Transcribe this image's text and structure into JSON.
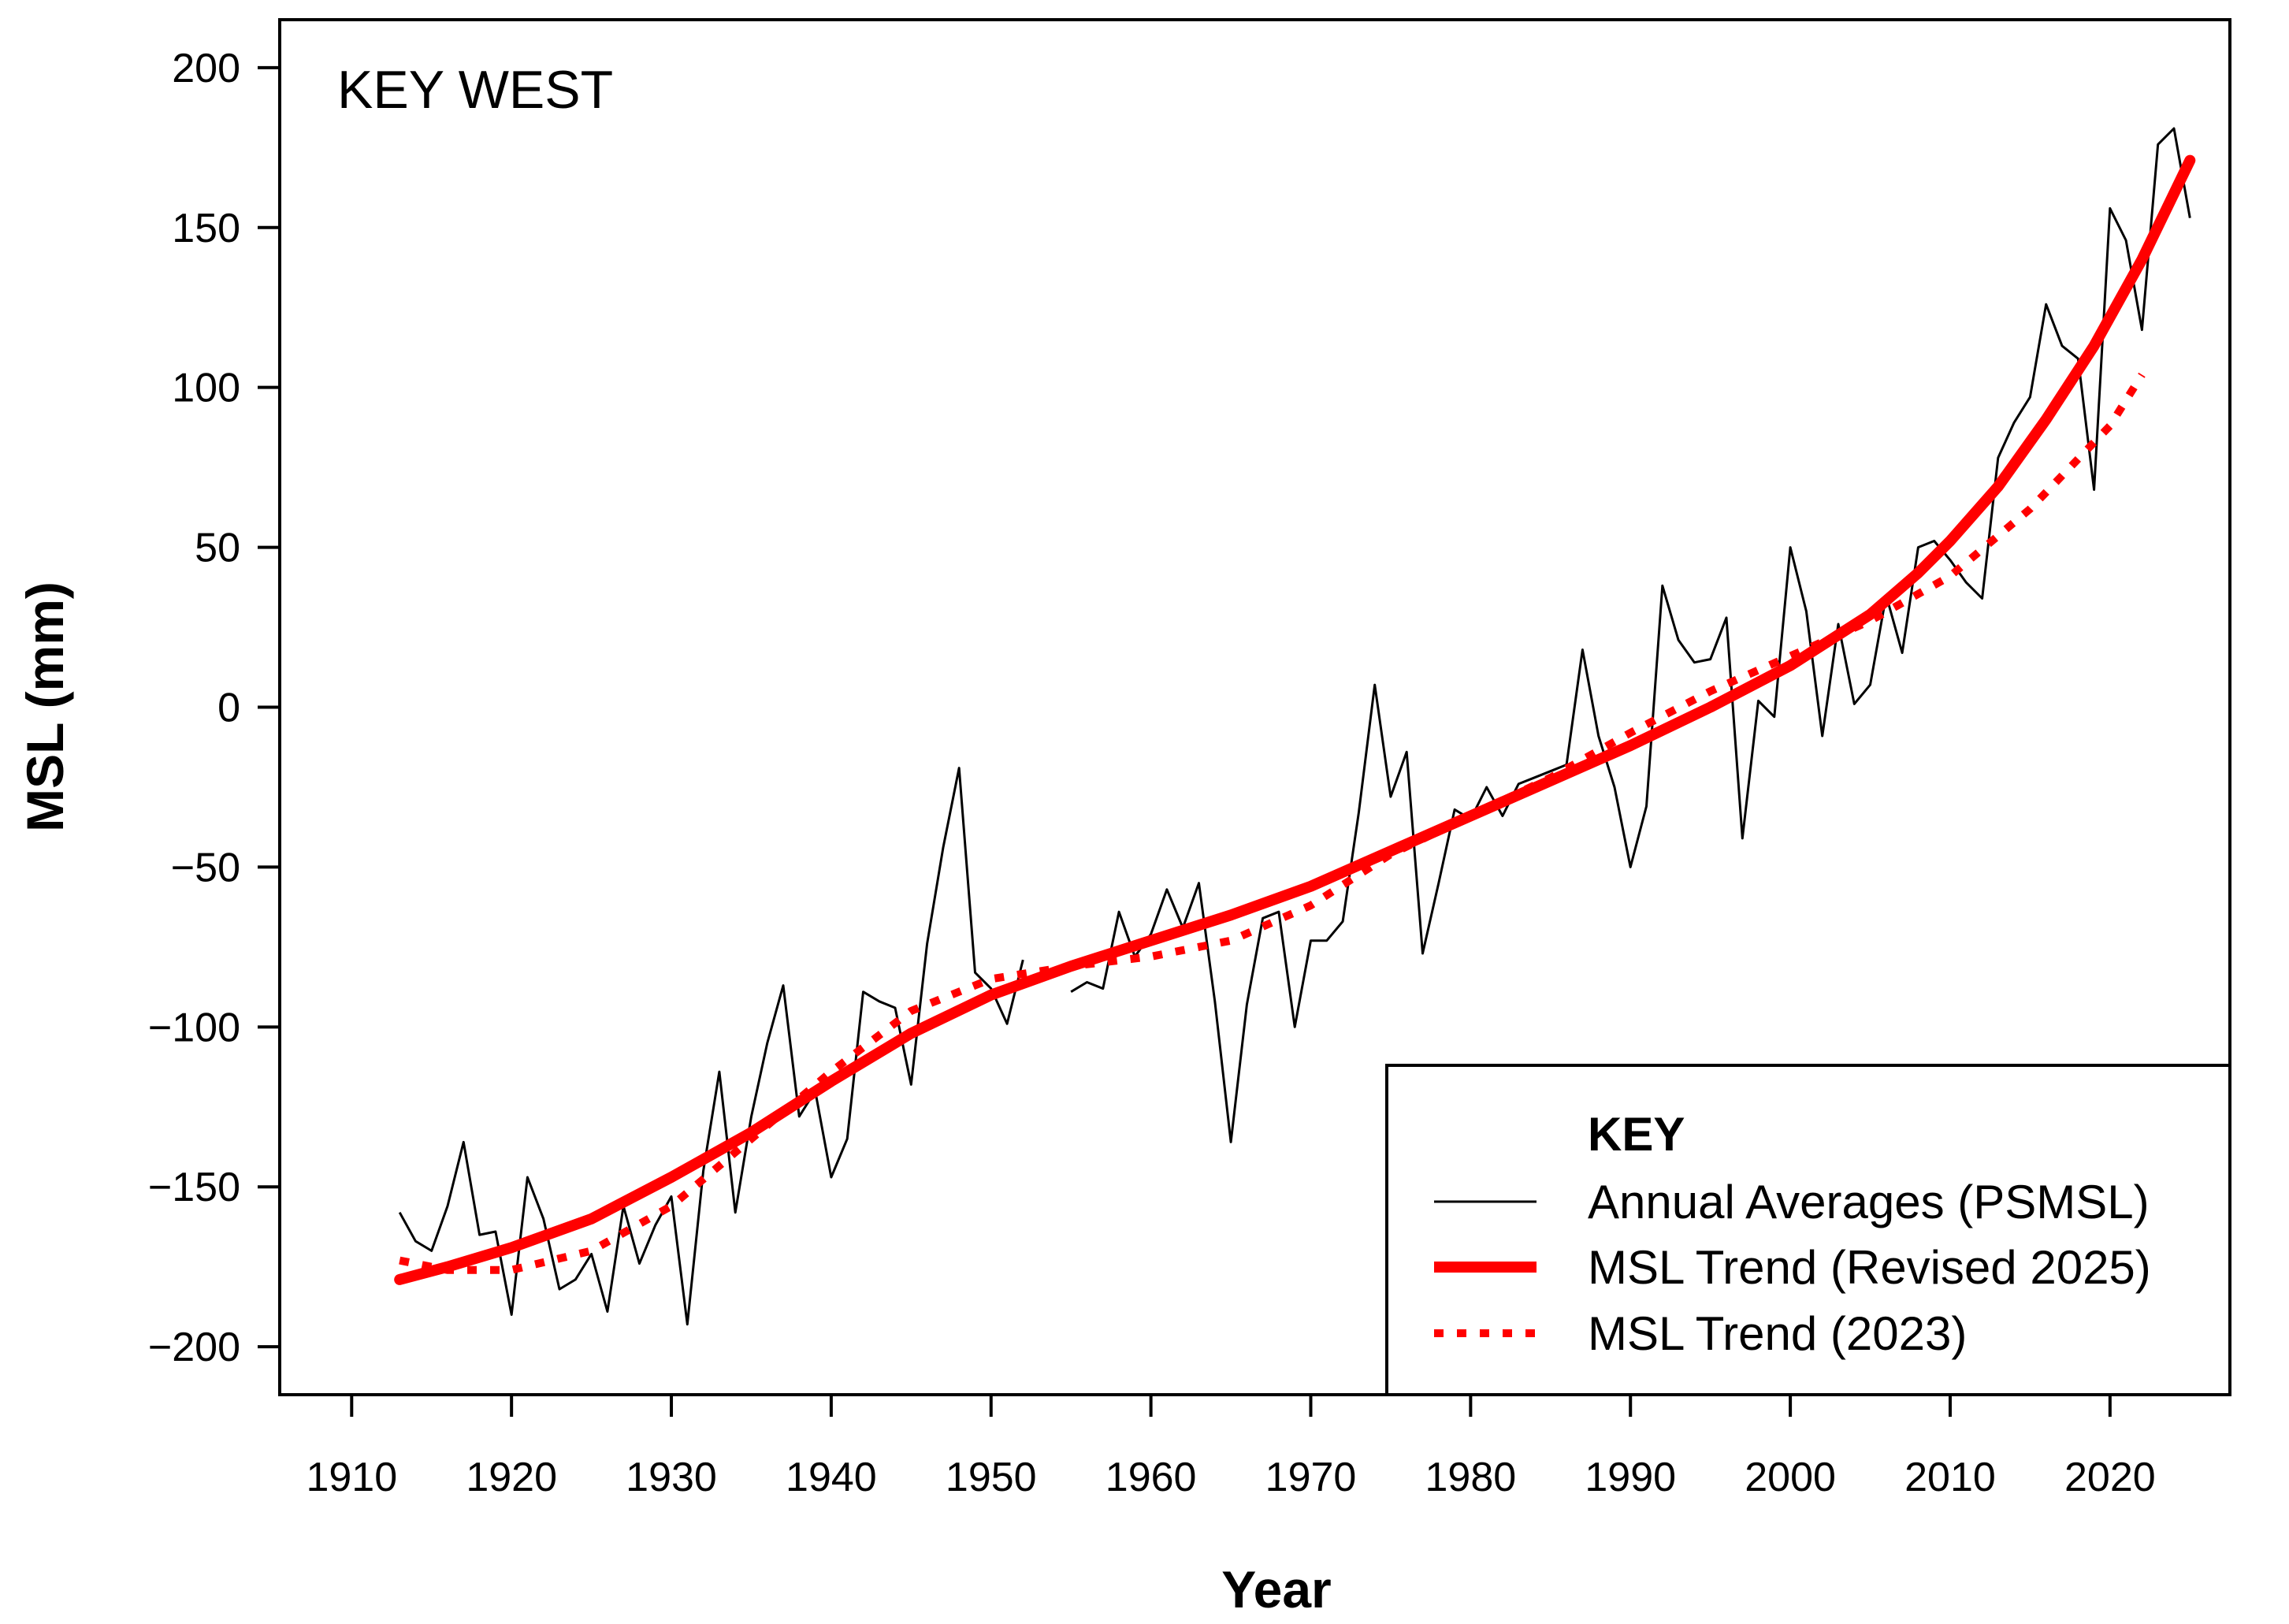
{
  "chart_data": {
    "type": "line",
    "title": "KEY WEST",
    "xlabel": "Year",
    "ylabel": "MSL (mm)",
    "xlim": [
      1905.5,
      2027.5
    ],
    "ylim": [
      -215,
      215
    ],
    "x_ticks": [
      "1910",
      "1920",
      "1930",
      "1940",
      "1950",
      "1960",
      "1970",
      "1980",
      "1990",
      "2000",
      "2010",
      "2020"
    ],
    "y_ticks": [
      "200",
      "150",
      "100",
      "50",
      "0",
      "−50",
      "−100",
      "−150",
      "−200"
    ],
    "colors": {
      "annual": "#000000",
      "trend": "#ff0000"
    },
    "legend": {
      "title": "KEY",
      "position": "bottom-right",
      "entries": [
        {
          "label": "Annual Averages (PSMSL)",
          "style": "thin-black"
        },
        {
          "label": "MSL Trend (Revised 2025)",
          "style": "thick-red"
        },
        {
          "label": "MSL Trend (2023)",
          "style": "dotted-red"
        }
      ]
    },
    "series": [
      {
        "name": "Annual Averages (PSMSL)",
        "segments": [
          {
            "x": [
              1913,
              1914,
              1915,
              1916,
              1917,
              1918,
              1919,
              1920,
              1921,
              1922,
              1923,
              1924,
              1925,
              1926,
              1927,
              1928,
              1929,
              1930,
              1931,
              1932,
              1933,
              1934,
              1935,
              1936,
              1937,
              1938,
              1939,
              1940,
              1941,
              1942,
              1943,
              1944,
              1945,
              1946,
              1947,
              1948,
              1949,
              1950,
              1951,
              1952
            ],
            "y": [
              -158,
              -167,
              -170,
              -156,
              -136,
              -165,
              -164,
              -190,
              -147,
              -160,
              -182,
              -179,
              -171,
              -189,
              -156,
              -174,
              -162,
              -153,
              -193,
              -145,
              -114,
              -158,
              -128,
              -105,
              -87,
              -128,
              -120,
              -147,
              -135,
              -89,
              -92,
              -94,
              -118,
              -74,
              -44,
              -19,
              -83,
              -88,
              -99,
              -79
            ]
          },
          {
            "x": [
              1955,
              1956,
              1957,
              1958,
              1959,
              1960,
              1961,
              1962,
              1963,
              1964,
              1965,
              1966,
              1967,
              1968,
              1969,
              1970,
              1971,
              1972,
              1973,
              1974,
              1975,
              1976,
              1977,
              1978,
              1979,
              1980,
              1981,
              1982,
              1983,
              1984,
              1985,
              1986,
              1987,
              1988,
              1989,
              1990,
              1991,
              1992,
              1993,
              1994,
              1995,
              1996,
              1997,
              1998,
              1999,
              2000,
              2001,
              2002,
              2003,
              2004,
              2005,
              2006,
              2007,
              2008,
              2009,
              2010,
              2011,
              2012,
              2013,
              2014,
              2015,
              2016,
              2017,
              2018,
              2019,
              2020,
              2021,
              2022,
              2023,
              2024,
              2025
            ],
            "y": [
              -89,
              -86,
              -88,
              -64,
              -78,
              -71,
              -57,
              -69,
              -55,
              -92,
              -136,
              -93,
              -66,
              -64,
              -100,
              -73,
              -73,
              -67,
              -33,
              7,
              -28,
              -14,
              -77,
              -55,
              -32,
              -35,
              -25,
              -34,
              -24,
              -22,
              -20,
              -18,
              18,
              -9,
              -25,
              -50,
              -31,
              38,
              21,
              14,
              15,
              28,
              -41,
              2,
              -3,
              50,
              30,
              -9,
              26,
              1,
              7,
              35,
              17,
              50,
              52,
              46,
              39,
              34,
              78,
              89,
              97,
              126,
              113,
              109,
              68,
              156,
              146,
              118,
              176,
              181,
              153
            ]
          }
        ]
      },
      {
        "name": "MSL Trend (Revised 2025)",
        "x": [
          1913,
          1916,
          1920,
          1925,
          1930,
          1935,
          1940,
          1945,
          1950,
          1955,
          1960,
          1965,
          1970,
          1975,
          1980,
          1985,
          1990,
          1995,
          2000,
          2005,
          2008,
          2010,
          2013,
          2016,
          2019,
          2022,
          2025
        ],
        "y": [
          -179,
          -175,
          -169,
          -160,
          -147,
          -133,
          -117,
          -102,
          -90,
          -81,
          -73,
          -65,
          -56,
          -45,
          -34,
          -23,
          -12,
          0,
          13,
          29,
          42,
          52,
          69,
          90,
          113,
          140,
          171
        ]
      },
      {
        "name": "MSL Trend (2023)",
        "x": [
          1913,
          1916,
          1920,
          1925,
          1930,
          1935,
          1940,
          1945,
          1950,
          1955,
          1960,
          1965,
          1970,
          1975,
          1980,
          1985,
          1990,
          1995,
          2000,
          2005,
          2010,
          2015,
          2020,
          2022
        ],
        "y": [
          -173,
          -176,
          -176,
          -170,
          -156,
          -135,
          -114,
          -95,
          -85,
          -81,
          -78,
          -73,
          -62,
          -46,
          -34,
          -22,
          -8,
          5,
          16,
          27,
          41,
          62,
          88,
          104
        ]
      }
    ]
  }
}
